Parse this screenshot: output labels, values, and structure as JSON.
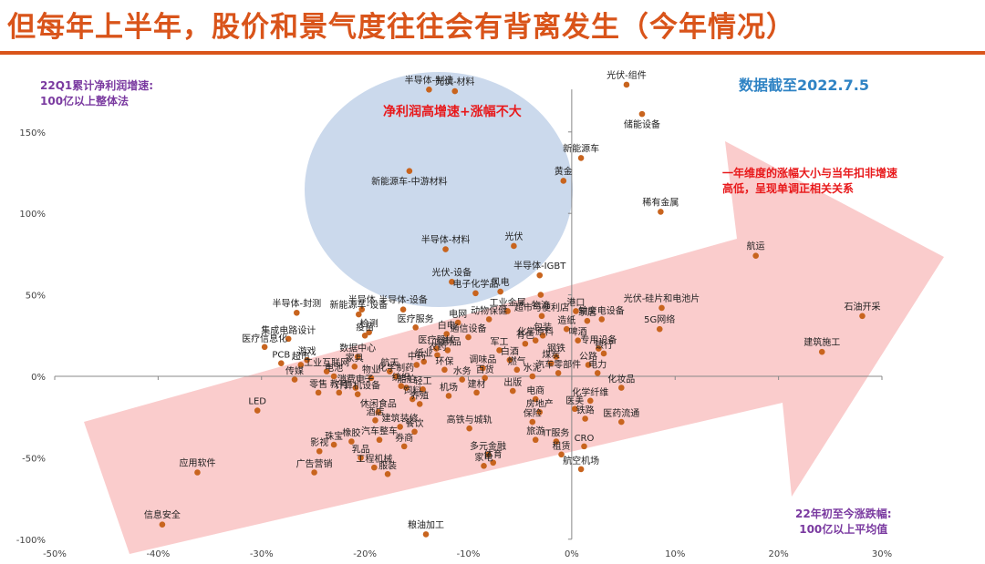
{
  "title": "但每年上半年，股价和景气度往往会有背离发生（今年情况）",
  "notes": {
    "profit_line1": "22Q1累计净利润增速:",
    "profit_line2": "100亿以上整体法",
    "date": "数据截至2022.7.5",
    "circle": "净利润高增速+涨幅不大",
    "arrow_line1": "一年维度的涨幅大小与当年扣非增速",
    "arrow_line2": "高低，呈现单调正相关关系",
    "return_line1": "22年初至今涨跌幅:",
    "return_line2": "100亿以上平均值"
  },
  "colors": {
    "title": "#d9541a",
    "point": "#c8641e",
    "circle": "#c5d5ea",
    "arrow": "#f9c3c3",
    "axis": "#888888"
  },
  "chart_data": {
    "type": "scatter",
    "xlabel": "22年初至今涨跌幅",
    "ylabel": "22Q1累计净利润增速",
    "xlim": [
      -0.5,
      0.3
    ],
    "ylim": [
      -1.0,
      1.75
    ],
    "x_ticks": [
      -0.5,
      -0.4,
      -0.3,
      -0.2,
      -0.1,
      0,
      0.1,
      0.2,
      0.3
    ],
    "x_tick_labels": [
      "-50%",
      "-40%",
      "-30%",
      "-20%",
      "-10%",
      "0%",
      "10%",
      "20%",
      "30%"
    ],
    "y_ticks": [
      -1.0,
      -0.5,
      0,
      0.5,
      1.0,
      1.5
    ],
    "y_tick_labels": [
      "-100%",
      "-50%",
      "0%",
      "50%",
      "100%",
      "150%"
    ],
    "grid": false,
    "points": [
      {
        "label": "光伏-组件",
        "x": 0.053,
        "y": 1.79
      },
      {
        "label": "储能设备",
        "x": 0.068,
        "y": 1.61
      },
      {
        "label": "半导体-制造",
        "x": -0.138,
        "y": 1.76
      },
      {
        "label": "光伏-材料",
        "x": -0.113,
        "y": 1.75
      },
      {
        "label": "新能源车",
        "x": 0.009,
        "y": 1.34
      },
      {
        "label": "黄金",
        "x": -0.008,
        "y": 1.2
      },
      {
        "label": "新能源车-中游材料",
        "x": -0.157,
        "y": 1.26
      },
      {
        "label": "稀有金属",
        "x": 0.086,
        "y": 1.01
      },
      {
        "label": "航运",
        "x": 0.178,
        "y": 0.74
      },
      {
        "label": "半导体-材料",
        "x": -0.122,
        "y": 0.78
      },
      {
        "label": "光伏",
        "x": -0.056,
        "y": 0.8
      },
      {
        "label": "半导体-IGBT",
        "x": -0.031,
        "y": 0.62
      },
      {
        "label": "光伏-设备",
        "x": -0.116,
        "y": 0.58
      },
      {
        "label": "电子化学品",
        "x": -0.093,
        "y": 0.51
      },
      {
        "label": "风电",
        "x": -0.069,
        "y": 0.52
      },
      {
        "label": "物流",
        "x": -0.03,
        "y": 0.5
      },
      {
        "label": "石油开采",
        "x": 0.281,
        "y": 0.37
      },
      {
        "label": "建筑施工",
        "x": 0.242,
        "y": 0.15
      },
      {
        "label": "光伏-硅片和电池片",
        "x": 0.087,
        "y": 0.42
      },
      {
        "label": "5G网络",
        "x": 0.085,
        "y": 0.29
      },
      {
        "label": "半导体-封测",
        "x": -0.266,
        "y": 0.39
      },
      {
        "label": "半导体",
        "x": -0.203,
        "y": 0.41
      },
      {
        "label": "半导体-设备",
        "x": -0.163,
        "y": 0.41
      },
      {
        "label": "新能源车-设备",
        "x": -0.206,
        "y": 0.38
      },
      {
        "label": "港口",
        "x": 0.004,
        "y": 0.4
      },
      {
        "label": "输变电设备",
        "x": 0.029,
        "y": 0.35
      },
      {
        "label": "家居",
        "x": 0.015,
        "y": 0.34
      },
      {
        "label": "超市与便利店",
        "x": -0.029,
        "y": 0.37
      },
      {
        "label": "工业金属",
        "x": -0.062,
        "y": 0.4
      },
      {
        "label": "白电",
        "x": -0.121,
        "y": 0.26
      },
      {
        "label": "医疗信息化",
        "x": -0.297,
        "y": 0.18
      },
      {
        "label": "集成电路设计",
        "x": -0.274,
        "y": 0.23
      },
      {
        "label": "PCB",
        "x": -0.281,
        "y": 0.08
      },
      {
        "label": "游戏",
        "x": -0.256,
        "y": 0.1
      },
      {
        "label": "数据中心",
        "x": -0.207,
        "y": 0.12
      },
      {
        "label": "检测",
        "x": -0.196,
        "y": 0.27
      },
      {
        "label": "工业互联网",
        "x": -0.237,
        "y": 0.03
      },
      {
        "label": "超市",
        "x": -0.262,
        "y": 0.07
      },
      {
        "label": "消费电子",
        "x": -0.209,
        "y": -0.07
      },
      {
        "label": "啤酒",
        "x": 0.006,
        "y": 0.22
      },
      {
        "label": "专用设备",
        "x": 0.026,
        "y": 0.17
      },
      {
        "label": "银行",
        "x": 0.031,
        "y": 0.14
      },
      {
        "label": "公路",
        "x": 0.016,
        "y": 0.07
      },
      {
        "label": "汽车零部件",
        "x": -0.013,
        "y": 0.02
      },
      {
        "label": "电力",
        "x": 0.025,
        "y": 0.02
      },
      {
        "label": "化妆品",
        "x": 0.048,
        "y": -0.07
      },
      {
        "label": "化学纤维",
        "x": 0.018,
        "y": -0.15
      },
      {
        "label": "医美",
        "x": 0.003,
        "y": -0.2
      },
      {
        "label": "铁路",
        "x": 0.013,
        "y": -0.26
      },
      {
        "label": "医药流通",
        "x": 0.048,
        "y": -0.28
      },
      {
        "label": "水泥",
        "x": -0.038,
        "y": 0.0
      },
      {
        "label": "电商",
        "x": -0.035,
        "y": -0.14
      },
      {
        "label": "房地产",
        "x": -0.031,
        "y": -0.22
      },
      {
        "label": "保险",
        "x": -0.038,
        "y": -0.28
      },
      {
        "label": "高铁与城轨",
        "x": -0.099,
        "y": -0.32
      },
      {
        "label": "旅游",
        "x": -0.035,
        "y": -0.39
      },
      {
        "label": "多元金融",
        "x": -0.081,
        "y": -0.48
      },
      {
        "label": "家电",
        "x": -0.085,
        "y": -0.55
      },
      {
        "label": "航空机场",
        "x": 0.009,
        "y": -0.57
      },
      {
        "label": "LED",
        "x": -0.304,
        "y": -0.21
      },
      {
        "label": "应用软件",
        "x": -0.362,
        "y": -0.59
      },
      {
        "label": "信息安全",
        "x": -0.396,
        "y": -0.91
      },
      {
        "label": "粮油加工",
        "x": -0.141,
        "y": -0.97
      },
      {
        "label": "休闲食品",
        "x": -0.187,
        "y": -0.22
      },
      {
        "label": "建筑装修",
        "x": -0.166,
        "y": -0.31
      },
      {
        "label": "券商",
        "x": -0.162,
        "y": -0.43
      },
      {
        "label": "工程机械",
        "x": -0.191,
        "y": -0.56
      },
      {
        "label": "影视",
        "x": -0.244,
        "y": -0.46
      },
      {
        "label": "广告营销",
        "x": -0.249,
        "y": -0.59
      },
      {
        "label": "橡胶",
        "x": -0.213,
        "y": -0.4
      },
      {
        "label": "汽车整车",
        "x": -0.186,
        "y": -0.39
      },
      {
        "label": "计算机设备",
        "x": -0.207,
        "y": -0.11
      },
      {
        "label": "饲料",
        "x": -0.154,
        "y": -0.14
      },
      {
        "label": "医疗服务",
        "x": -0.151,
        "y": 0.3
      },
      {
        "label": "建材",
        "x": -0.092,
        "y": -0.1
      },
      {
        "label": "百货",
        "x": -0.084,
        "y": -0.01
      },
      {
        "label": "出版",
        "x": -0.057,
        "y": -0.09
      },
      {
        "label": "化学原料",
        "x": -0.035,
        "y": 0.22
      },
      {
        "label": "军工",
        "x": -0.07,
        "y": 0.16
      },
      {
        "label": "煤炭",
        "x": -0.02,
        "y": 0.08
      },
      {
        "label": "有色",
        "x": -0.045,
        "y": 0.2
      },
      {
        "label": "电网",
        "x": -0.11,
        "y": 0.33
      },
      {
        "label": "医疗器械",
        "x": -0.131,
        "y": 0.17
      },
      {
        "label": "中药",
        "x": -0.15,
        "y": 0.07
      },
      {
        "label": "化学制药",
        "x": -0.17,
        "y": 0.0
      },
      {
        "label": "纺织",
        "x": -0.165,
        "y": -0.06
      },
      {
        "label": "养殖",
        "x": -0.147,
        "y": -0.17
      },
      {
        "label": "调味品",
        "x": -0.086,
        "y": 0.05
      },
      {
        "label": "白酒",
        "x": -0.06,
        "y": 0.1
      },
      {
        "label": "燃气",
        "x": -0.053,
        "y": 0.04
      },
      {
        "label": "环保",
        "x": -0.123,
        "y": 0.04
      },
      {
        "label": "农药",
        "x": -0.13,
        "y": 0.13
      },
      {
        "label": "通信设备",
        "x": -0.1,
        "y": 0.24
      },
      {
        "label": "钢铁",
        "x": -0.015,
        "y": 0.12
      },
      {
        "label": "造纸",
        "x": -0.005,
        "y": 0.29
      },
      {
        "label": "包装",
        "x": -0.028,
        "y": 0.25
      },
      {
        "label": "电池",
        "x": -0.23,
        "y": 0.0
      },
      {
        "label": "航天",
        "x": -0.176,
        "y": 0.03
      },
      {
        "label": "船舶",
        "x": -0.16,
        "y": -0.07
      },
      {
        "label": "机场",
        "x": -0.119,
        "y": -0.12
      },
      {
        "label": "水务",
        "x": -0.106,
        "y": -0.02
      },
      {
        "label": "物业",
        "x": -0.194,
        "y": -0.01
      },
      {
        "label": "教育",
        "x": -0.225,
        "y": -0.1
      },
      {
        "label": "传媒",
        "x": -0.268,
        "y": -0.02
      },
      {
        "label": "零售",
        "x": -0.245,
        "y": -0.1
      },
      {
        "label": "家具",
        "x": -0.21,
        "y": 0.06
      },
      {
        "label": "纸业",
        "x": -0.143,
        "y": 0.09
      },
      {
        "label": "轻工",
        "x": -0.144,
        "y": -0.08
      },
      {
        "label": "酒店",
        "x": -0.19,
        "y": -0.27
      },
      {
        "label": "餐饮",
        "x": -0.152,
        "y": -0.34
      },
      {
        "label": "乳品",
        "x": -0.204,
        "y": -0.5
      },
      {
        "label": "服装",
        "x": -0.178,
        "y": -0.6
      },
      {
        "label": "珠宝",
        "x": -0.23,
        "y": -0.42
      },
      {
        "label": "体育",
        "x": -0.076,
        "y": -0.53
      },
      {
        "label": "租赁",
        "x": -0.01,
        "y": -0.48
      },
      {
        "label": "IT服务",
        "x": -0.015,
        "y": -0.4
      },
      {
        "label": "CRO",
        "x": 0.012,
        "y": -0.43
      },
      {
        "label": "疫苗",
        "x": -0.2,
        "y": 0.25
      },
      {
        "label": "血制品",
        "x": -0.12,
        "y": 0.16
      },
      {
        "label": "动物保健",
        "x": -0.08,
        "y": 0.35
      }
    ],
    "label_positions": {
      "光伏-组件": "up",
      "储能设备": "down",
      "半导体-制造": "up",
      "光伏-材料": "up",
      "新能源车": "up",
      "黄金": "up",
      "新能源车-中游材料": "down",
      "稀有金属": "up",
      "航运": "up",
      "半导体-材料": "up",
      "光伏": "up",
      "半导体-IGBT": "up",
      "光伏-设备": "up",
      "电子化学品": "up",
      "风电": "up",
      "物流": "down",
      "石油开采": "up",
      "建筑施工": "up",
      "光伏-硅片和电池片": "up",
      "5G网络": "up",
      "半导体-封测": "up",
      "半导体": "up",
      "半导体-设备": "up",
      "新能源车-设备": "up",
      "LED": "up",
      "应用软件": "up",
      "信息安全": "up",
      "粮油加工": "up"
    }
  }
}
